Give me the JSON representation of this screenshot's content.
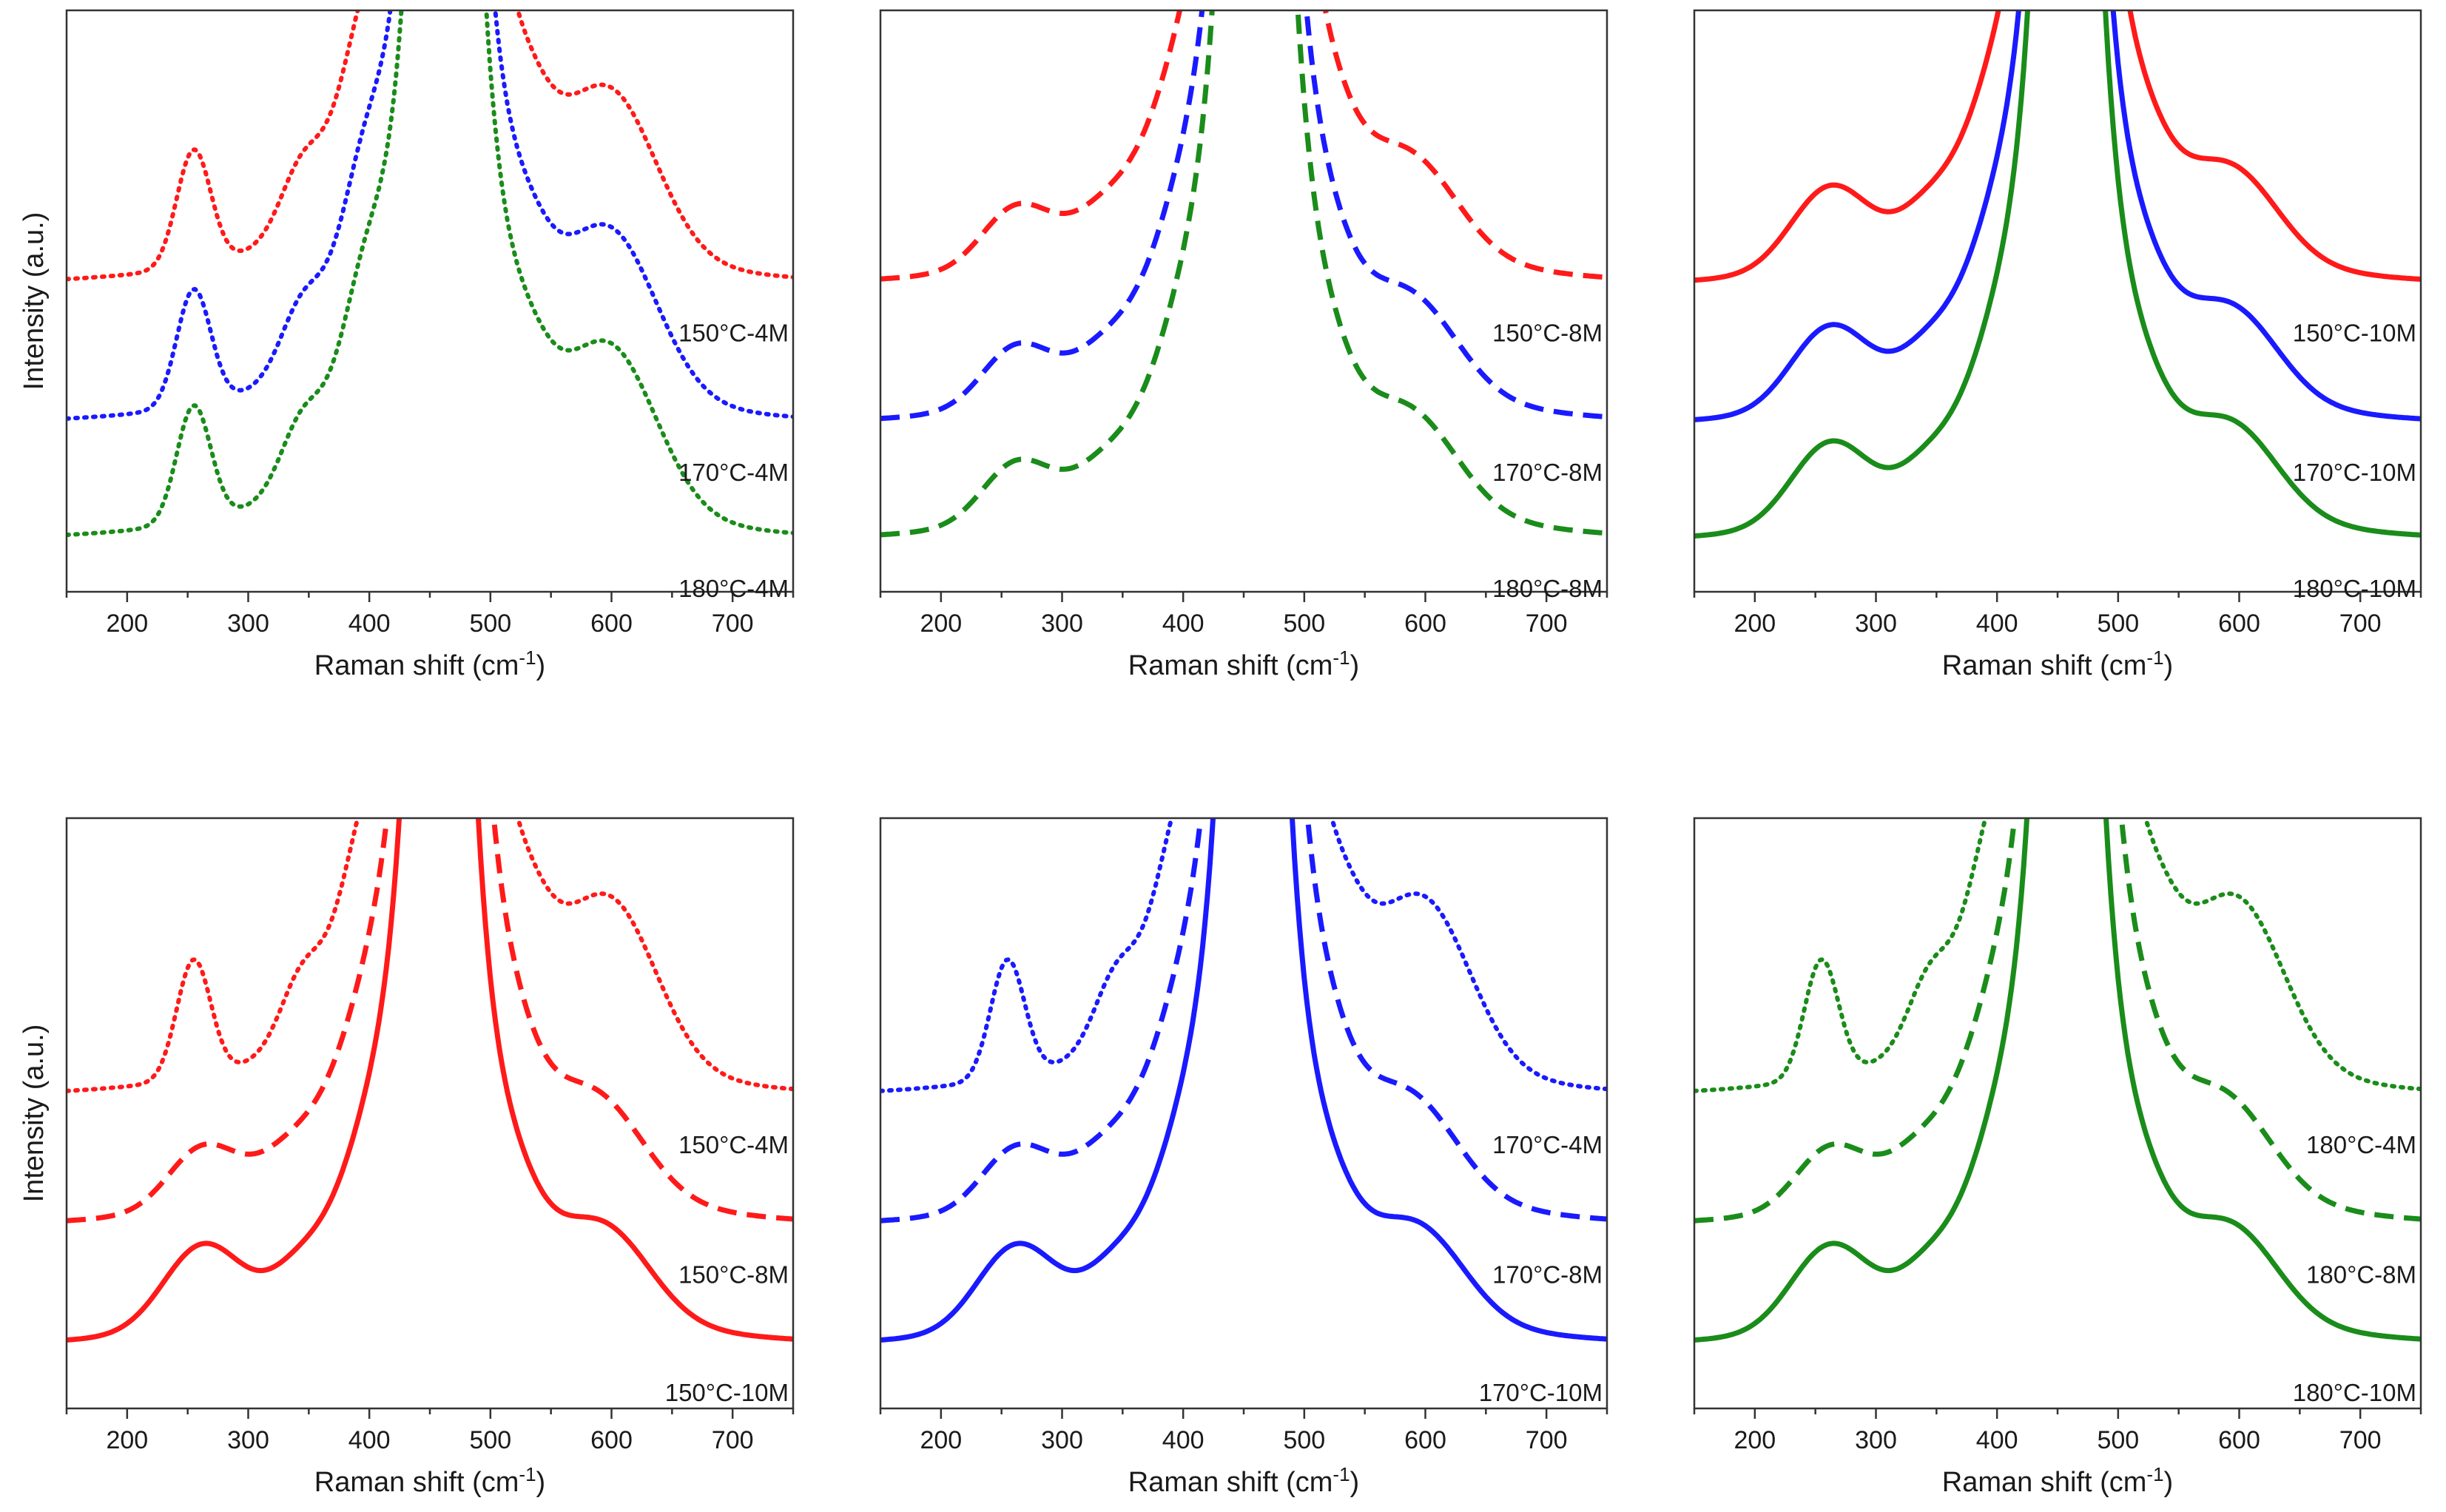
{
  "figure": {
    "description_free": true,
    "ylabel_text": "Intensity (a.u.)",
    "xlabel_main": "Raman shift (cm",
    "xlabel_sup": "-1",
    "xlabel_close": ")"
  },
  "colors": {
    "red": "#ff1a1a",
    "blue": "#1a1aff",
    "green": "#1a8c1a",
    "axis": "#333333"
  },
  "chart_data": [
    {
      "type": "line",
      "id": "top-left",
      "xlim": [
        150,
        750
      ],
      "xticks": [
        200,
        300,
        400,
        500,
        600,
        700
      ],
      "xlabel": "Raman shift (cm-1)",
      "ylabel": "Intensity (a.u.)",
      "series": [
        {
          "name": "150°C-4M",
          "color": "red",
          "style": "dotted",
          "baseline": 0.52,
          "profile": "p4",
          "label_x": 640
        },
        {
          "name": "170°C-4M",
          "color": "blue",
          "style": "dotted",
          "baseline": 0.28,
          "profile": "p4",
          "label_x": 640
        },
        {
          "name": "180°C-4M",
          "color": "green",
          "style": "dotted",
          "baseline": 0.08,
          "profile": "p4",
          "label_x": 640
        }
      ]
    },
    {
      "type": "line",
      "id": "top-middle",
      "xlim": [
        150,
        750
      ],
      "xticks": [
        200,
        300,
        400,
        500,
        600,
        700
      ],
      "xlabel": "Raman shift (cm-1)",
      "ylabel": "",
      "series": [
        {
          "name": "150°C-8M",
          "color": "red",
          "style": "dashed",
          "baseline": 0.52,
          "profile": "p8",
          "label_x": 640
        },
        {
          "name": "170°C-8M",
          "color": "blue",
          "style": "dashed",
          "baseline": 0.28,
          "profile": "p8",
          "label_x": 640
        },
        {
          "name": "180°C-8M",
          "color": "green",
          "style": "dashed",
          "baseline": 0.08,
          "profile": "p8",
          "label_x": 640
        }
      ]
    },
    {
      "type": "line",
      "id": "top-right",
      "xlim": [
        150,
        750
      ],
      "xticks": [
        200,
        300,
        400,
        500,
        600,
        700
      ],
      "xlabel": "Raman shift (cm-1)",
      "ylabel": "",
      "series": [
        {
          "name": "150°C-10M",
          "color": "red",
          "style": "solid",
          "baseline": 0.52,
          "profile": "p10",
          "label_x": 640
        },
        {
          "name": "170°C-10M",
          "color": "blue",
          "style": "solid",
          "baseline": 0.28,
          "profile": "p10",
          "label_x": 640
        },
        {
          "name": "180°C-10M",
          "color": "green",
          "style": "solid",
          "baseline": 0.08,
          "profile": "p10",
          "label_x": 640
        }
      ]
    },
    {
      "type": "line",
      "id": "bottom-left",
      "xlim": [
        150,
        750
      ],
      "xticks": [
        200,
        300,
        400,
        500,
        600,
        700
      ],
      "xlabel": "Raman shift (cm-1)",
      "ylabel": "Intensity (a.u.)",
      "series": [
        {
          "name": "150°C-4M",
          "color": "red",
          "style": "dotted",
          "baseline": 0.52,
          "profile": "p4",
          "label_x": 640
        },
        {
          "name": "150°C-8M",
          "color": "red",
          "style": "dashed",
          "baseline": 0.3,
          "profile": "p8",
          "label_x": 640
        },
        {
          "name": "150°C-10M",
          "color": "red",
          "style": "solid",
          "baseline": 0.1,
          "profile": "p10",
          "label_x": 640
        }
      ]
    },
    {
      "type": "line",
      "id": "bottom-middle",
      "xlim": [
        150,
        750
      ],
      "xticks": [
        200,
        300,
        400,
        500,
        600,
        700
      ],
      "xlabel": "Raman shift (cm-1)",
      "ylabel": "",
      "series": [
        {
          "name": "170°C-4M",
          "color": "blue",
          "style": "dotted",
          "baseline": 0.52,
          "profile": "p4",
          "label_x": 640
        },
        {
          "name": "170°C-8M",
          "color": "blue",
          "style": "dashed",
          "baseline": 0.3,
          "profile": "p8",
          "label_x": 640
        },
        {
          "name": "170°C-10M",
          "color": "blue",
          "style": "solid",
          "baseline": 0.1,
          "profile": "p10",
          "label_x": 640
        }
      ]
    },
    {
      "type": "line",
      "id": "bottom-right",
      "xlim": [
        150,
        750
      ],
      "xticks": [
        200,
        300,
        400,
        500,
        600,
        700
      ],
      "xlabel": "Raman shift (cm-1)",
      "ylabel": "",
      "series": [
        {
          "name": "180°C-4M",
          "color": "green",
          "style": "dotted",
          "baseline": 0.52,
          "profile": "p4",
          "label_x": 640
        },
        {
          "name": "180°C-8M",
          "color": "green",
          "style": "dashed",
          "baseline": 0.3,
          "profile": "p8",
          "label_x": 640
        },
        {
          "name": "180°C-10M",
          "color": "green",
          "style": "solid",
          "baseline": 0.1,
          "profile": "p10",
          "label_x": 640
        }
      ]
    }
  ],
  "profiles": {
    "p4": {
      "peaks": [
        [
          255,
          0.2,
          14
        ],
        [
          345,
          0.11,
          18
        ],
        [
          395,
          0.2,
          20
        ],
        [
          600,
          0.26,
          38
        ],
        [
          530,
          0.08,
          20
        ]
      ],
      "main": [
        462,
        0.5,
        22
      ]
    },
    "p8": {
      "peaks": [
        [
          262,
          0.1,
          28
        ],
        [
          340,
          0.06,
          30
        ],
        [
          400,
          0.12,
          25
        ],
        [
          590,
          0.14,
          38
        ],
        [
          520,
          0.05,
          20
        ]
      ],
      "main": [
        460,
        0.5,
        22
      ]
    },
    "p10": {
      "peaks": [
        [
          262,
          0.14,
          32
        ],
        [
          345,
          0.06,
          25
        ],
        [
          400,
          0.12,
          25
        ],
        [
          595,
          0.14,
          38
        ],
        [
          520,
          0.06,
          22
        ]
      ],
      "main": [
        458,
        0.5,
        20
      ]
    }
  }
}
